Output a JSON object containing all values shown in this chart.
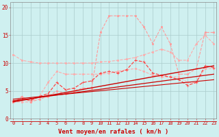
{
  "background_color": "#cff0f0",
  "grid_color": "#aacccc",
  "xlabel": "Vent moyen/en rafales ( km/h )",
  "x_ticks": [
    0,
    1,
    2,
    3,
    4,
    5,
    6,
    7,
    8,
    9,
    10,
    11,
    12,
    13,
    14,
    15,
    16,
    17,
    18,
    19,
    20,
    21,
    22,
    23
  ],
  "ylim": [
    0,
    21
  ],
  "xlim": [
    -0.3,
    23.3
  ],
  "y_ticks": [
    0,
    5,
    10,
    15,
    20
  ],
  "tick_fontsize": 5.0,
  "label_fontsize": 6.5,
  "series": [
    {
      "color": "#ffaaaa",
      "lw": 0.8,
      "ls": "--",
      "marker": "s",
      "ms": 1.8,
      "x": [
        0,
        1,
        2,
        3,
        4,
        5,
        6,
        7,
        8,
        9,
        10,
        11,
        12,
        13,
        14,
        15,
        16,
        17,
        18,
        19,
        20,
        21,
        22,
        23
      ],
      "y": [
        11.5,
        10.5,
        10.2,
        10.0,
        10.0,
        10.0,
        10.0,
        10.0,
        10.0,
        10.0,
        10.2,
        10.3,
        10.5,
        10.7,
        11.0,
        11.5,
        12.0,
        12.5,
        12.0,
        10.5,
        10.5,
        13.5,
        15.0,
        13.5
      ]
    },
    {
      "color": "#ffaaaa",
      "lw": 0.8,
      "ls": "--",
      "marker": "s",
      "ms": 1.8,
      "x": [
        0,
        1,
        2,
        3,
        4,
        5,
        6,
        7,
        8,
        9,
        10,
        11,
        12,
        13,
        14,
        15,
        16,
        17,
        18,
        19,
        20,
        21,
        22,
        23
      ],
      "y": [
        3.0,
        3.0,
        3.0,
        4.0,
        6.5,
        8.5,
        8.0,
        8.0,
        8.0,
        8.0,
        8.0,
        8.2,
        8.5,
        8.8,
        9.0,
        8.5,
        7.8,
        7.5,
        7.5,
        7.5,
        6.5,
        6.5,
        9.0,
        9.0
      ]
    },
    {
      "color": "#ff9999",
      "lw": 0.8,
      "ls": "--",
      "marker": "s",
      "ms": 1.8,
      "x": [
        0,
        1,
        2,
        3,
        4,
        5,
        6,
        7,
        8,
        9,
        10,
        11,
        12,
        13,
        14,
        15,
        16,
        17,
        18,
        19,
        20,
        21,
        22,
        23
      ],
      "y": [
        3.0,
        4.0,
        3.0,
        3.5,
        4.0,
        5.0,
        4.5,
        5.0,
        5.5,
        5.5,
        15.5,
        18.5,
        18.5,
        18.5,
        18.5,
        16.5,
        13.5,
        16.5,
        13.5,
        8.0,
        8.0,
        9.0,
        15.5,
        15.5
      ]
    },
    {
      "color": "#ff4444",
      "lw": 0.9,
      "ls": "--",
      "marker": "+",
      "ms": 3.5,
      "x": [
        0,
        1,
        2,
        3,
        4,
        5,
        6,
        7,
        8,
        9,
        10,
        11,
        12,
        13,
        14,
        15,
        16,
        17,
        18,
        19,
        20,
        21,
        22,
        23
      ],
      "y": [
        3.2,
        3.5,
        3.3,
        4.0,
        4.5,
        6.5,
        5.2,
        5.5,
        6.5,
        6.8,
        8.2,
        8.5,
        8.2,
        8.8,
        10.5,
        10.2,
        8.2,
        7.8,
        7.5,
        7.0,
        6.0,
        6.5,
        9.5,
        9.2
      ]
    },
    {
      "color": "#cc0000",
      "lw": 1.0,
      "ls": "-",
      "marker": null,
      "ms": 0,
      "x": [
        0,
        23
      ],
      "y": [
        3.0,
        9.5
      ]
    },
    {
      "color": "#cc0000",
      "lw": 0.9,
      "ls": "-",
      "marker": null,
      "ms": 0,
      "x": [
        0,
        23
      ],
      "y": [
        3.2,
        8.0
      ]
    },
    {
      "color": "#cc0000",
      "lw": 0.8,
      "ls": "-",
      "marker": null,
      "ms": 0,
      "x": [
        0,
        23
      ],
      "y": [
        3.5,
        7.0
      ]
    }
  ]
}
